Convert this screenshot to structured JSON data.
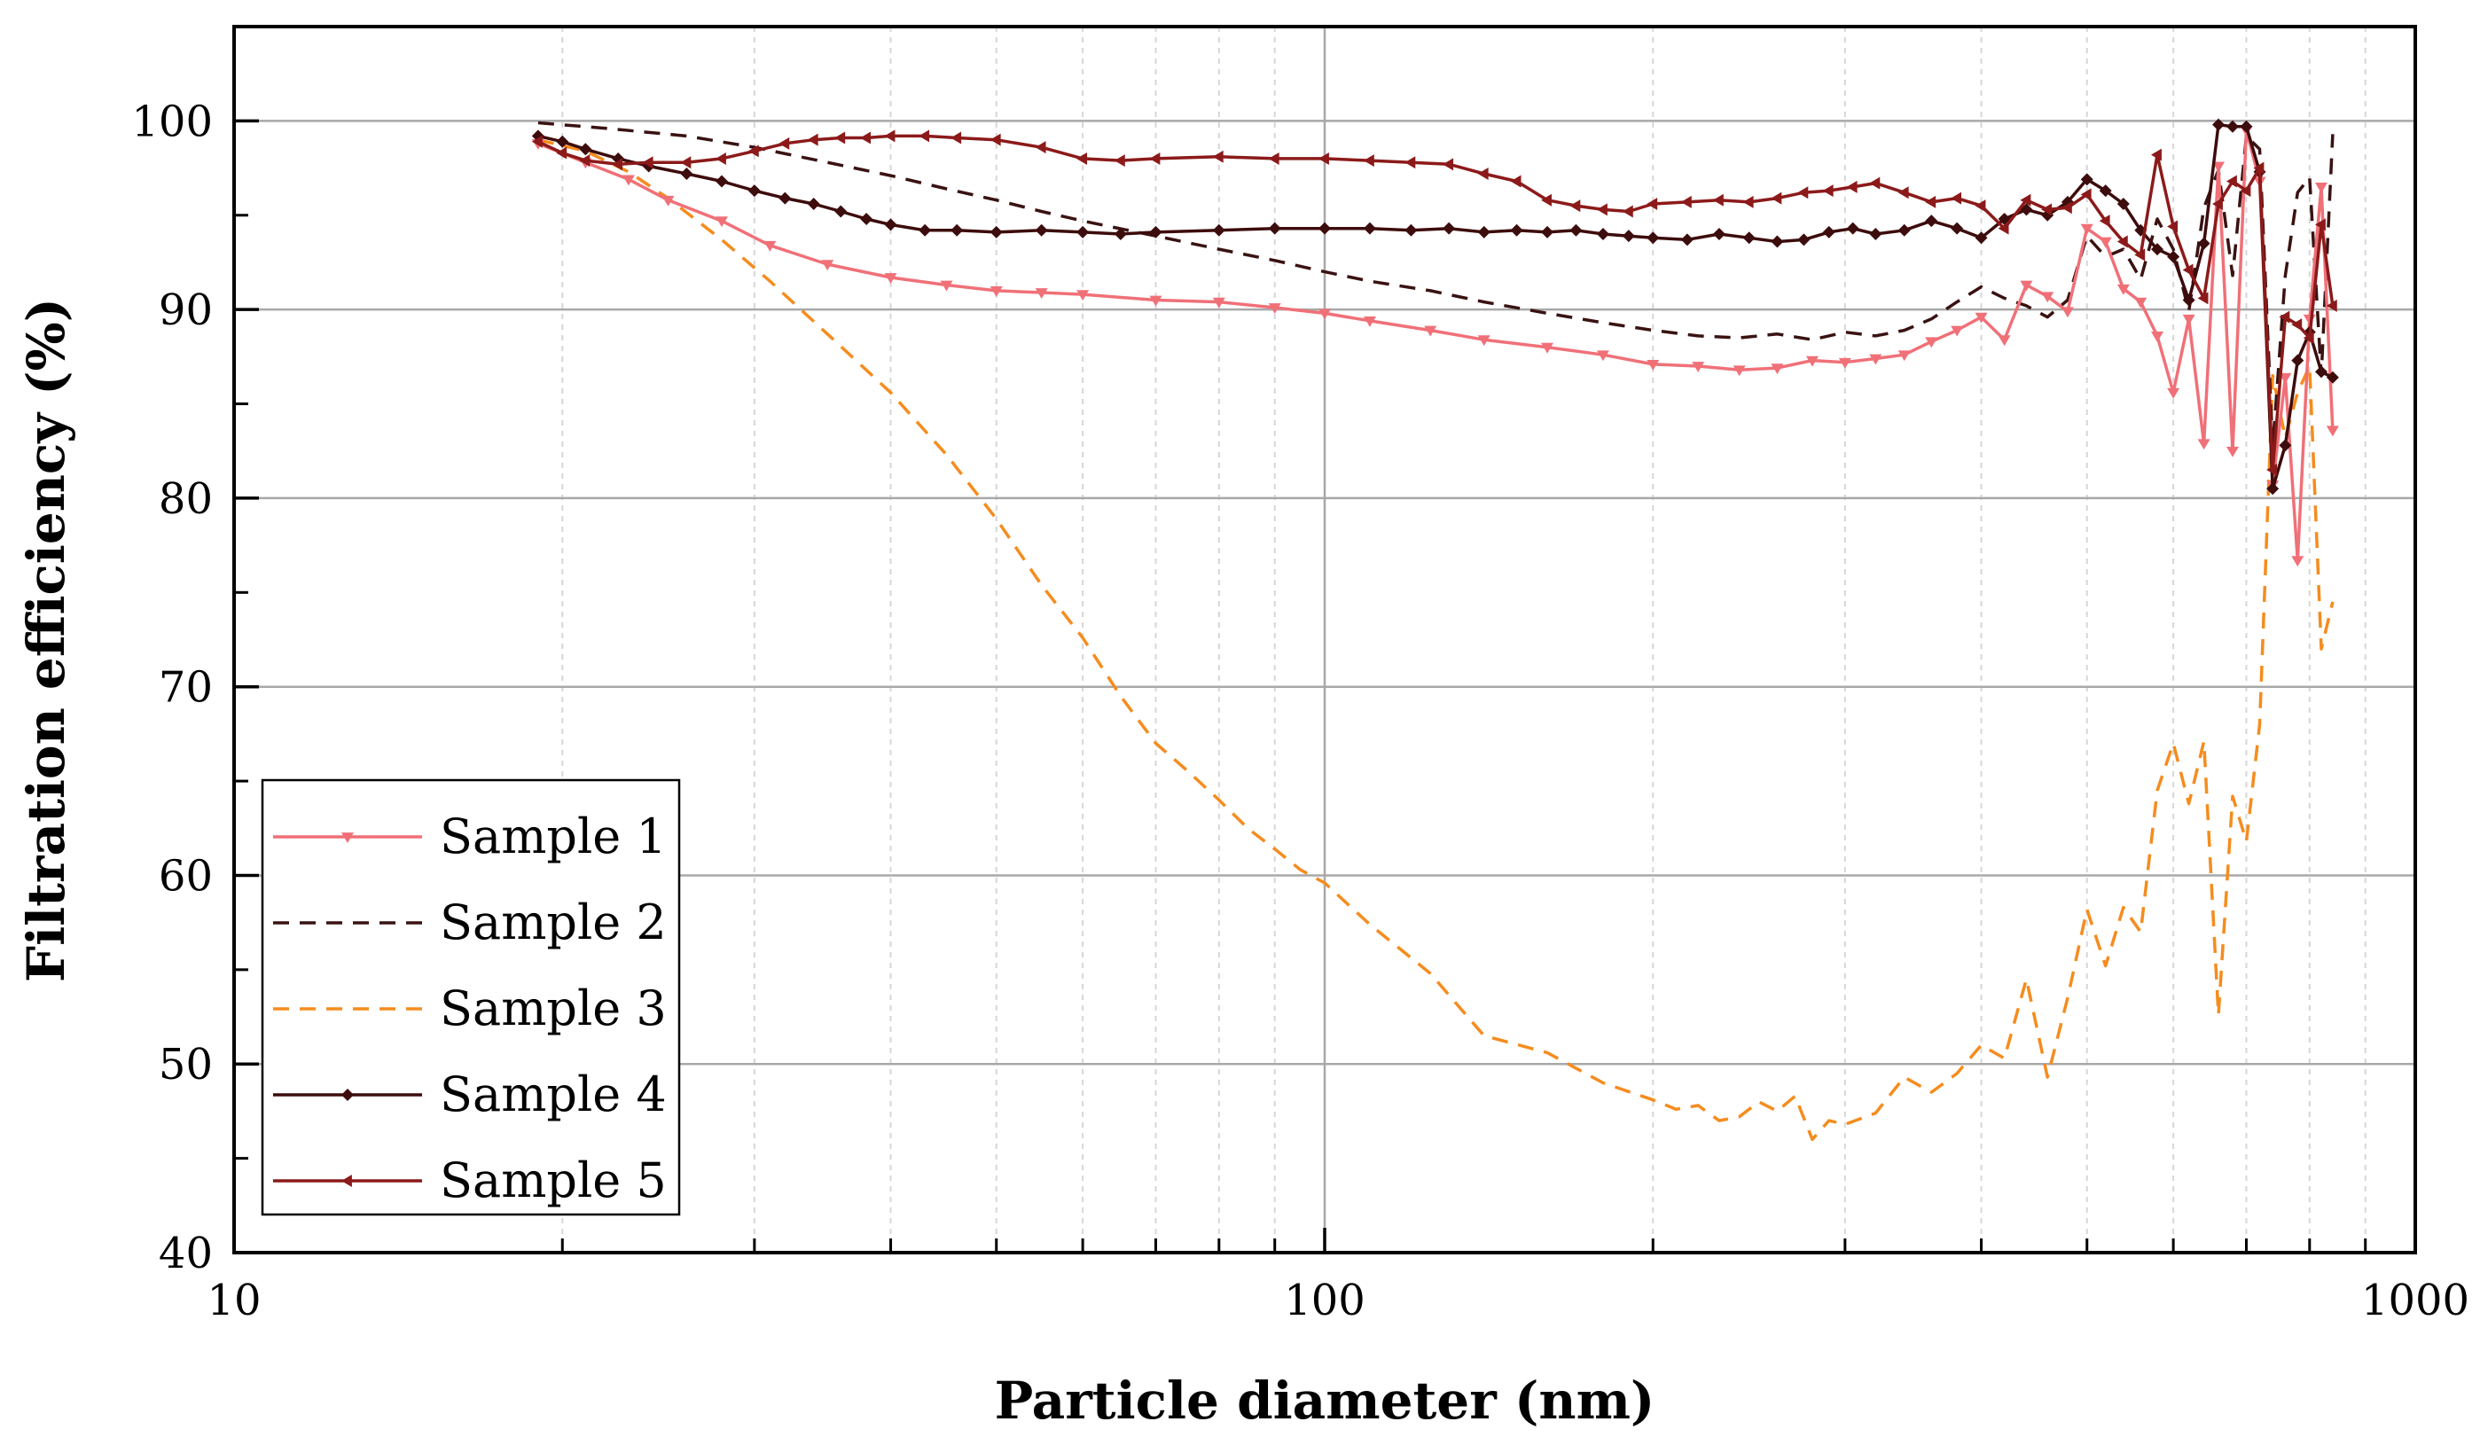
{
  "chart_data": {
    "type": "line",
    "title": "",
    "xlabel": "Particle diameter (nm)",
    "ylabel": "Filtration efficiency (%)",
    "xscale": "log",
    "xlim": [
      10,
      1000
    ],
    "ylim": [
      40,
      105
    ],
    "xticks": [
      10,
      100,
      1000
    ],
    "xtick_labels": [
      "10",
      "100",
      "1000"
    ],
    "yticks": [
      40,
      50,
      60,
      70,
      80,
      90,
      100
    ],
    "ytick_labels": [
      "40",
      "50",
      "60",
      "70",
      "80",
      "90",
      "100"
    ],
    "grid": true,
    "legend_position": "bottom-left",
    "series": [
      {
        "name": "Sample 1",
        "color": "#f07078",
        "style": "solid",
        "marker": "triangle-down",
        "x": [
          19.0,
          21.0,
          23.0,
          25.0,
          28.0,
          31.0,
          35.0,
          40.0,
          45.0,
          50.0,
          55.0,
          60.0,
          70.0,
          80.0,
          90.0,
          100.0,
          110.0,
          125.0,
          140.0,
          160.0,
          180.0,
          200.0,
          220.0,
          240.0,
          260.0,
          280.0,
          300.0,
          320.0,
          340.0,
          360.0,
          380.0,
          400.0,
          420.0,
          440.0,
          460.0,
          480.0,
          500.0,
          520.0,
          540.0,
          560.0,
          580.0,
          600.0,
          620.0,
          640.0,
          660.0,
          680.0,
          700.0,
          720.0,
          740.0,
          760.0,
          780.0,
          800.0,
          820.0,
          840.0
        ],
        "y": [
          98.8,
          97.8,
          96.9,
          95.8,
          94.7,
          93.4,
          92.4,
          91.7,
          91.3,
          91.0,
          90.9,
          90.8,
          90.5,
          90.4,
          90.1,
          89.8,
          89.4,
          88.9,
          88.4,
          88.0,
          87.6,
          87.1,
          87.0,
          86.8,
          86.9,
          87.3,
          87.2,
          87.4,
          87.6,
          88.3,
          88.9,
          89.6,
          88.4,
          91.3,
          90.7,
          89.9,
          94.3,
          93.6,
          91.1,
          90.4,
          88.6,
          85.6,
          89.5,
          82.9,
          97.6,
          82.5,
          99.5,
          96.8,
          80.7,
          86.4,
          76.7,
          89.5,
          96.5,
          83.6
        ]
      },
      {
        "name": "Sample 2",
        "color": "#3a1212",
        "style": "dashed",
        "marker": "none",
        "x": [
          19.0,
          22.0,
          26.0,
          30.0,
          35.0,
          40.0,
          45.0,
          50.0,
          55.0,
          60.0,
          70.0,
          80.0,
          90.0,
          100.0,
          110.0,
          125.0,
          140.0,
          160.0,
          180.0,
          200.0,
          220.0,
          240.0,
          260.0,
          280.0,
          300.0,
          320.0,
          340.0,
          360.0,
          380.0,
          400.0,
          420.0,
          440.0,
          460.0,
          480.0,
          500.0,
          520.0,
          540.0,
          560.0,
          580.0,
          600.0,
          620.0,
          640.0,
          660.0,
          680.0,
          700.0,
          720.0,
          740.0,
          760.0,
          780.0,
          800.0,
          820.0,
          840.0
        ],
        "y": [
          99.9,
          99.6,
          99.2,
          98.6,
          97.8,
          97.1,
          96.4,
          95.8,
          95.2,
          94.7,
          93.9,
          93.2,
          92.6,
          92.0,
          91.5,
          91.0,
          90.4,
          89.8,
          89.3,
          88.9,
          88.6,
          88.5,
          88.7,
          88.4,
          88.8,
          88.6,
          88.9,
          89.5,
          90.4,
          91.2,
          90.6,
          90.2,
          89.6,
          90.5,
          93.9,
          92.8,
          93.2,
          91.6,
          94.8,
          93.2,
          89.9,
          95.4,
          97.4,
          91.8,
          99.2,
          98.5,
          82.7,
          91.8,
          96.2,
          97.0,
          86.5,
          99.3
        ]
      },
      {
        "name": "Sample 3",
        "color": "#f58c1e",
        "style": "dashed",
        "marker": "none",
        "x": [
          19.0,
          21.0,
          23.0,
          25.0,
          28.0,
          31.0,
          35.0,
          40.0,
          45.0,
          50.0,
          55.0,
          60.0,
          65.0,
          70.0,
          75.0,
          80.0,
          85.0,
          90.0,
          95.0,
          100.0,
          110.0,
          125.0,
          140.0,
          160.0,
          180.0,
          200.0,
          210.0,
          220.0,
          230.0,
          240.0,
          250.0,
          260.0,
          270.0,
          280.0,
          290.0,
          300.0,
          320.0,
          340.0,
          360.0,
          380.0,
          400.0,
          420.0,
          440.0,
          460.0,
          480.0,
          500.0,
          520.0,
          540.0,
          560.0,
          580.0,
          600.0,
          620.0,
          640.0,
          660.0,
          680.0,
          700.0,
          720.0,
          740.0,
          760.0,
          780.0,
          800.0,
          820.0,
          840.0
        ],
        "y": [
          99.0,
          98.4,
          97.3,
          95.9,
          93.7,
          91.5,
          88.7,
          85.6,
          82.3,
          78.9,
          75.4,
          72.6,
          69.5,
          67.0,
          65.5,
          64.0,
          62.5,
          61.4,
          60.3,
          59.6,
          57.4,
          54.8,
          51.5,
          50.6,
          49.0,
          48.1,
          47.6,
          47.8,
          47.0,
          47.2,
          48.0,
          47.5,
          48.3,
          46.0,
          47.0,
          46.8,
          47.4,
          49.3,
          48.5,
          49.5,
          51.0,
          50.3,
          54.5,
          49.3,
          53.5,
          58.2,
          55.2,
          58.3,
          57.0,
          64.5,
          67.0,
          63.8,
          67.1,
          52.6,
          64.2,
          61.8,
          68.0,
          86.5,
          83.2,
          85.6,
          87.0,
          72.0,
          74.5
        ]
      },
      {
        "name": "Sample 4",
        "color": "#3d0c0c",
        "style": "solid",
        "marker": "diamond",
        "x": [
          19.0,
          20.0,
          21.0,
          22.5,
          24.0,
          26.0,
          28.0,
          30.0,
          32.0,
          34.0,
          36.0,
          38.0,
          40.0,
          43.0,
          46.0,
          50.0,
          55.0,
          60.0,
          65.0,
          70.0,
          80.0,
          90.0,
          100.0,
          110.0,
          120.0,
          130.0,
          140.0,
          150.0,
          160.0,
          170.0,
          180.0,
          190.0,
          200.0,
          215.0,
          230.0,
          245.0,
          260.0,
          275.0,
          290.0,
          305.0,
          320.0,
          340.0,
          360.0,
          380.0,
          400.0,
          420.0,
          440.0,
          460.0,
          480.0,
          500.0,
          520.0,
          540.0,
          560.0,
          580.0,
          600.0,
          620.0,
          640.0,
          660.0,
          680.0,
          700.0,
          720.0,
          740.0,
          760.0,
          780.0,
          800.0,
          820.0,
          840.0
        ],
        "y": [
          99.2,
          98.9,
          98.5,
          98.0,
          97.6,
          97.2,
          96.8,
          96.3,
          95.9,
          95.6,
          95.2,
          94.8,
          94.5,
          94.2,
          94.2,
          94.1,
          94.2,
          94.1,
          94.0,
          94.1,
          94.2,
          94.3,
          94.3,
          94.3,
          94.2,
          94.3,
          94.1,
          94.2,
          94.1,
          94.2,
          94.0,
          93.9,
          93.8,
          93.7,
          94.0,
          93.8,
          93.6,
          93.7,
          94.1,
          94.3,
          94.0,
          94.2,
          94.7,
          94.3,
          93.8,
          94.8,
          95.3,
          95.0,
          95.7,
          96.9,
          96.3,
          95.6,
          94.2,
          93.2,
          92.8,
          90.5,
          93.5,
          99.8,
          99.7,
          99.7,
          97.3,
          80.5,
          82.8,
          87.3,
          88.8,
          86.7,
          86.4
        ]
      },
      {
        "name": "Sample 5",
        "color": "#8c1a1a",
        "style": "solid",
        "marker": "triangle-left",
        "x": [
          19.0,
          20.0,
          21.0,
          22.5,
          24.0,
          26.0,
          28.0,
          30.0,
          32.0,
          34.0,
          36.0,
          38.0,
          40.0,
          43.0,
          46.0,
          50.0,
          55.0,
          60.0,
          65.0,
          70.0,
          80.0,
          90.0,
          100.0,
          110.0,
          120.0,
          130.0,
          140.0,
          150.0,
          160.0,
          170.0,
          180.0,
          190.0,
          200.0,
          215.0,
          230.0,
          245.0,
          260.0,
          275.0,
          290.0,
          305.0,
          320.0,
          340.0,
          360.0,
          380.0,
          400.0,
          420.0,
          440.0,
          460.0,
          480.0,
          500.0,
          520.0,
          540.0,
          560.0,
          580.0,
          600.0,
          620.0,
          640.0,
          660.0,
          680.0,
          700.0,
          720.0,
          740.0,
          760.0,
          780.0,
          800.0,
          820.0,
          840.0
        ],
        "y": [
          98.9,
          98.3,
          97.9,
          97.7,
          97.8,
          97.8,
          98.0,
          98.4,
          98.8,
          99.0,
          99.1,
          99.1,
          99.2,
          99.2,
          99.1,
          99.0,
          98.6,
          98.0,
          97.9,
          98.0,
          98.1,
          98.0,
          98.0,
          97.9,
          97.8,
          97.7,
          97.2,
          96.8,
          95.8,
          95.5,
          95.3,
          95.2,
          95.6,
          95.7,
          95.8,
          95.7,
          95.9,
          96.2,
          96.3,
          96.5,
          96.7,
          96.2,
          95.7,
          95.9,
          95.5,
          94.3,
          95.8,
          95.3,
          95.4,
          96.1,
          94.7,
          93.6,
          92.9,
          98.2,
          94.4,
          92.1,
          90.6,
          95.6,
          96.8,
          96.3,
          97.5,
          81.5,
          89.6,
          89.2,
          88.5,
          94.5,
          90.2
        ]
      }
    ]
  }
}
